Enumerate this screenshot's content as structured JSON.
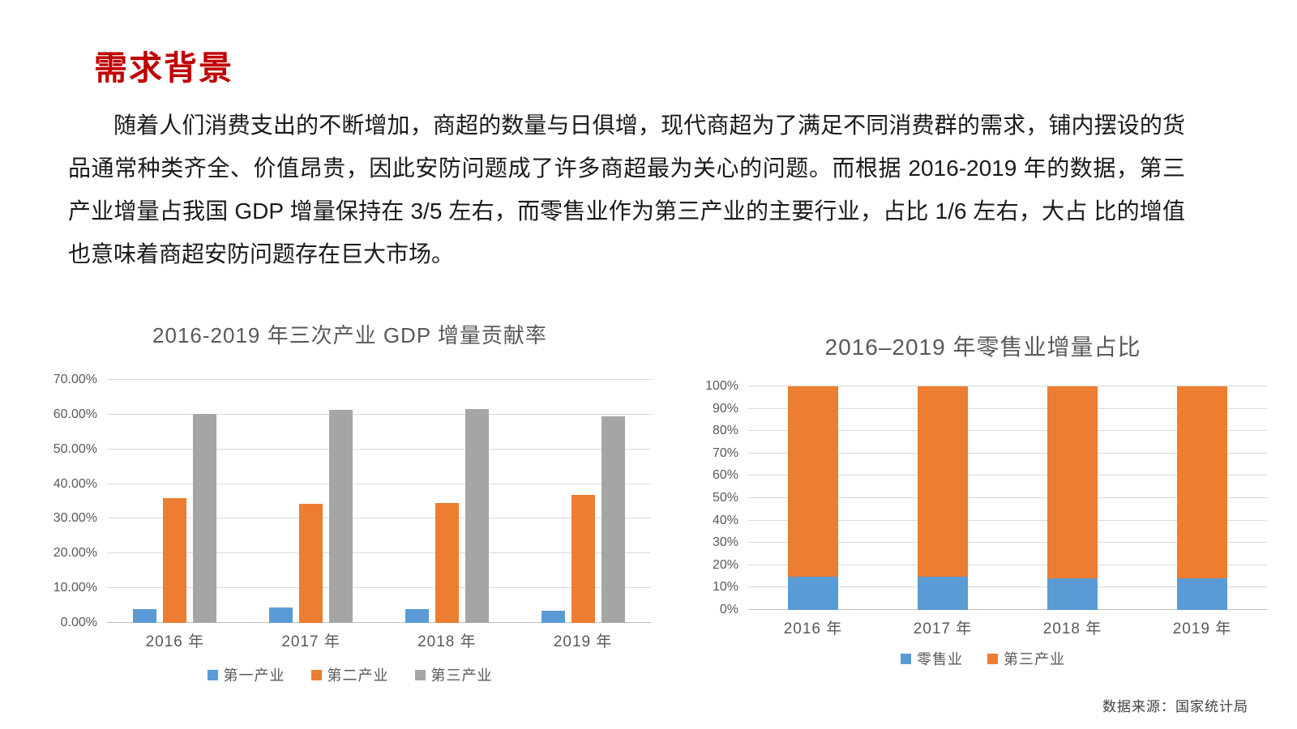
{
  "page": {
    "title": "需求背景",
    "paragraph": "随着人们消费支出的不断增加，商超的数量与日俱增，现代商超为了满足不同消费群的需求，铺内摆设的货品通常种类齐全、价值昂贵，因此安防问题成了许多商超最为关心的问题。而根据 2016-2019 年的数据，第三产业增量占我国 GDP 增量保持在 3/5 左右，而零售业作为第三产业的主要行业，占比 1/6 左右，大占 比的增值也意味着商超安防问题存在巨大市场。",
    "source_note": "数据来源：国家统计局"
  },
  "colors": {
    "accent_red": "#C00000",
    "body_text": "#1A1A1A",
    "chart_title_text": "#595959",
    "axis_text": "#595959",
    "gridline": "#D9D9D9",
    "axis_line": "#BFBFBF",
    "series_blue": "#5B9BD5",
    "series_orange": "#ED7D31",
    "series_gray": "#A5A5A5",
    "source_text": "#404040"
  },
  "chart_data": [
    {
      "type": "bar",
      "title": "2016-2019 年三次产业 GDP 增量贡献率",
      "categories": [
        "2016 年",
        "2017 年",
        "2018 年",
        "2019 年"
      ],
      "series": [
        {
          "name": "第一产业",
          "color": "#5B9BD5",
          "values": [
            4.0,
            4.4,
            3.9,
            3.5
          ]
        },
        {
          "name": "第二产业",
          "color": "#ED7D31",
          "values": [
            36.0,
            34.3,
            34.5,
            36.8
          ]
        },
        {
          "name": "第三产业",
          "color": "#A5A5A5",
          "values": [
            60.2,
            61.3,
            61.6,
            59.5
          ]
        }
      ],
      "xlabel": "",
      "ylabel": "",
      "ylim": [
        0,
        70
      ],
      "ytick_step": 10,
      "ytick_decimals": 2,
      "ytick_suffix": "%",
      "grid": true,
      "legend_position": "bottom"
    },
    {
      "type": "stacked-bar",
      "title": "2016–2019 年零售业增量占比",
      "categories": [
        "2016 年",
        "2017 年",
        "2018 年",
        "2019 年"
      ],
      "series": [
        {
          "name": "零售业",
          "color": "#5B9BD5",
          "values": [
            15,
            15,
            14,
            14
          ]
        },
        {
          "name": "第三产业",
          "color": "#ED7D31",
          "values": [
            85,
            85,
            86,
            86
          ]
        }
      ],
      "xlabel": "",
      "ylabel": "",
      "ylim": [
        0,
        100
      ],
      "ytick_step": 10,
      "ytick_decimals": 0,
      "ytick_suffix": "%",
      "grid": true,
      "legend_position": "bottom"
    }
  ]
}
